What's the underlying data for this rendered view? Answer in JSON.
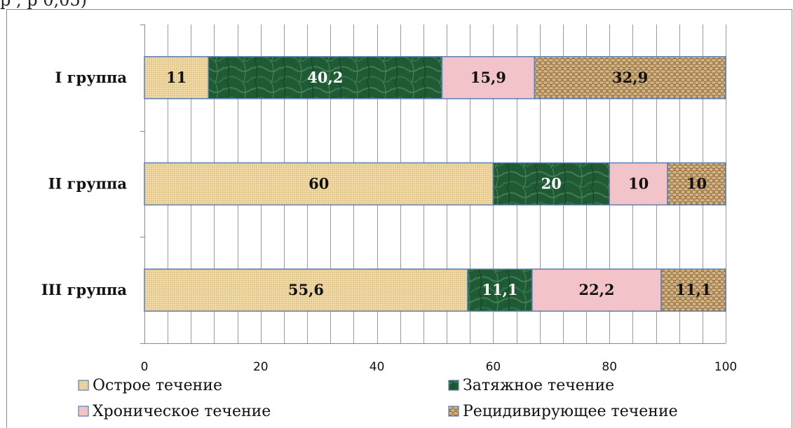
{
  "clipped_text": "р , р 0,05)",
  "chart_data": {
    "type": "bar",
    "orientation": "horizontal",
    "stacked": true,
    "categories": [
      "I группа",
      "II группа",
      "III группа"
    ],
    "series": [
      {
        "name": "Острое течение",
        "values": [
          11,
          60,
          55.6
        ],
        "labels": [
          "11",
          "60",
          "55,6"
        ],
        "color": "#ecd39b",
        "label_color": "#111111",
        "pattern": "burlap-light"
      },
      {
        "name": "Затяжное течение",
        "values": [
          40.2,
          20,
          11.1
        ],
        "labels": [
          "40,2",
          "20",
          "11,1"
        ],
        "color": "#1f5a34",
        "label_color": "#ffffff",
        "pattern": "marble-green"
      },
      {
        "name": "Хроническое течение",
        "values": [
          15.9,
          10,
          22.2
        ],
        "labels": [
          "15,9",
          "10",
          "22,2"
        ],
        "color": "#f2c3c8",
        "label_color": "#111111",
        "pattern": "solid"
      },
      {
        "name": "Рецидивирующее течение",
        "values": [
          32.9,
          10,
          11.1
        ],
        "labels": [
          "32,9",
          "10",
          "11,1"
        ],
        "color": "#b89564",
        "label_color": "#111111",
        "pattern": "burlap-dark"
      }
    ],
    "x_ticks": [
      "0",
      "20",
      "40",
      "60",
      "80",
      "100"
    ],
    "xlim": [
      0,
      100
    ],
    "minor_grid_step": 4,
    "grid": true,
    "legend_position": "bottom",
    "title": "",
    "xlabel": "",
    "ylabel": ""
  }
}
